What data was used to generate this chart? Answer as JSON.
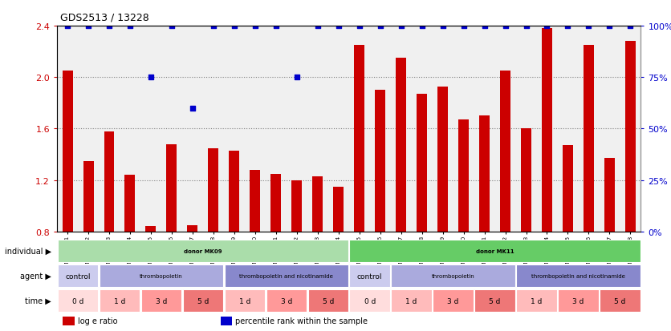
{
  "title": "GDS2513 / 13228",
  "samples": [
    "GSM112271",
    "GSM112272",
    "GSM112273",
    "GSM112274",
    "GSM112275",
    "GSM112276",
    "GSM112277",
    "GSM112278",
    "GSM112279",
    "GSM112280",
    "GSM112281",
    "GSM112282",
    "GSM112283",
    "GSM112284",
    "GSM112285",
    "GSM112286",
    "GSM112287",
    "GSM112288",
    "GSM112289",
    "GSM112290",
    "GSM112291",
    "GSM112292",
    "GSM112293",
    "GSM112294",
    "GSM112295",
    "GSM112296",
    "GSM112297",
    "GSM112298"
  ],
  "log_e_ratio": [
    2.05,
    1.35,
    1.58,
    1.24,
    0.84,
    1.48,
    0.85,
    1.45,
    1.43,
    1.28,
    1.25,
    1.2,
    1.23,
    1.15,
    2.25,
    1.9,
    2.15,
    1.87,
    1.93,
    1.67,
    1.7,
    2.05,
    1.6,
    2.38,
    1.47,
    2.25,
    1.37,
    2.28
  ],
  "percentile": [
    100,
    100,
    100,
    100,
    75,
    100,
    60,
    100,
    100,
    100,
    100,
    75,
    100,
    100,
    100,
    100,
    100,
    100,
    100,
    100,
    100,
    100,
    100,
    100,
    100,
    100,
    100,
    100
  ],
  "bar_color": "#cc0000",
  "dot_color": "#0000cc",
  "ylim_left": [
    0.8,
    2.4
  ],
  "ylim_right": [
    0,
    100
  ],
  "yticks_left": [
    0.8,
    1.2,
    1.6,
    2.0,
    2.4
  ],
  "yticks_right": [
    0,
    25,
    50,
    75,
    100
  ],
  "grid_values": [
    1.2,
    1.6,
    2.0
  ],
  "individual_row": [
    {
      "label": "donor MK09",
      "start": 0,
      "end": 14,
      "color": "#aaddaa"
    },
    {
      "label": "donor MK11",
      "start": 14,
      "end": 28,
      "color": "#66cc66"
    }
  ],
  "agent_row": [
    {
      "label": "control",
      "start": 0,
      "end": 2,
      "color": "#ccccee"
    },
    {
      "label": "thrombopoietin",
      "start": 2,
      "end": 8,
      "color": "#aaaadd"
    },
    {
      "label": "thrombopoietin and nicotinamide",
      "start": 8,
      "end": 14,
      "color": "#8888cc"
    },
    {
      "label": "control",
      "start": 14,
      "end": 16,
      "color": "#ccccee"
    },
    {
      "label": "thrombopoietin",
      "start": 16,
      "end": 22,
      "color": "#aaaadd"
    },
    {
      "label": "thrombopoietin and nicotinamide",
      "start": 22,
      "end": 28,
      "color": "#8888cc"
    }
  ],
  "time_row": [
    {
      "label": "0 d",
      "start": 0,
      "end": 2,
      "color": "#ffdddd"
    },
    {
      "label": "1 d",
      "start": 2,
      "end": 4,
      "color": "#ffbbbb"
    },
    {
      "label": "3 d",
      "start": 4,
      "end": 6,
      "color": "#ff9999"
    },
    {
      "label": "5 d",
      "start": 6,
      "end": 8,
      "color": "#ee7777"
    },
    {
      "label": "1 d",
      "start": 8,
      "end": 10,
      "color": "#ffbbbb"
    },
    {
      "label": "3 d",
      "start": 10,
      "end": 12,
      "color": "#ff9999"
    },
    {
      "label": "5 d",
      "start": 12,
      "end": 14,
      "color": "#ee7777"
    },
    {
      "label": "0 d",
      "start": 14,
      "end": 16,
      "color": "#ffdddd"
    },
    {
      "label": "1 d",
      "start": 16,
      "end": 18,
      "color": "#ffbbbb"
    },
    {
      "label": "3 d",
      "start": 18,
      "end": 20,
      "color": "#ff9999"
    },
    {
      "label": "5 d",
      "start": 20,
      "end": 22,
      "color": "#ee7777"
    },
    {
      "label": "1 d",
      "start": 22,
      "end": 24,
      "color": "#ffbbbb"
    },
    {
      "label": "3 d",
      "start": 24,
      "end": 26,
      "color": "#ff9999"
    },
    {
      "label": "5 d",
      "start": 26,
      "end": 28,
      "color": "#ee7777"
    }
  ],
  "row_labels": [
    "individual",
    "agent",
    "time"
  ],
  "legend_items": [
    {
      "label": "log e ratio",
      "color": "#cc0000"
    },
    {
      "label": "percentile rank within the sample",
      "color": "#0000cc"
    }
  ],
  "bg_color": "#f0f0f0"
}
